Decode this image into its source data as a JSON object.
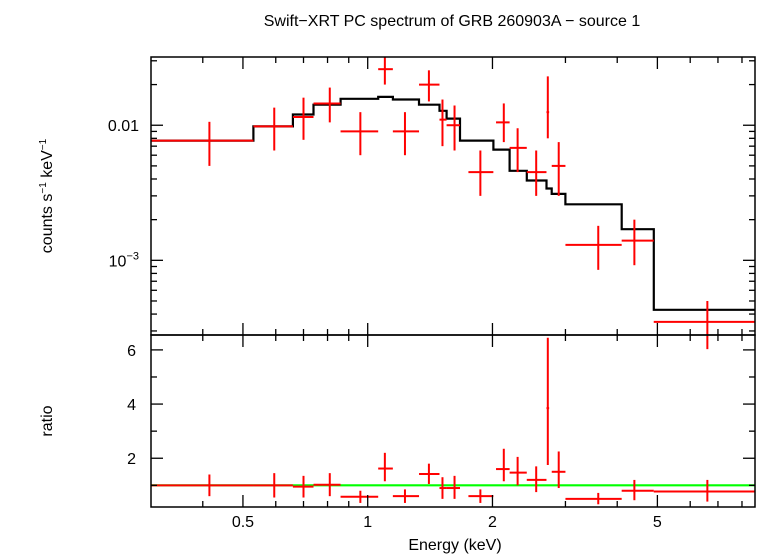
{
  "title": "Swift−XRT PC spectrum of GRB 260903A − source 1",
  "colors": {
    "data": "#ff0000",
    "model": "#000000",
    "unity": "#00ff00",
    "axes": "#000000"
  },
  "chart_data": [
    {
      "type": "scatter",
      "name_panel": "spectrum",
      "ylabel_main": "counts s",
      "ylabel_sup1": "−1",
      "ylabel_mid": " keV",
      "ylabel_sup2": "−1",
      "xscale": "log",
      "yscale": "log",
      "xlim": [
        0.3,
        8.6
      ],
      "ylim": [
        0.00028,
        0.032
      ],
      "ytick_labels": [
        {
          "value": 0.01,
          "label": "0.01",
          "sup": ""
        },
        {
          "value": 0.001,
          "label": "10",
          "sup": "−3"
        }
      ],
      "points": [
        {
          "x": 0.415,
          "xlo": 0.3,
          "xhi": 0.53,
          "y": 0.0077,
          "ylo": 0.005,
          "yhi": 0.0106
        },
        {
          "x": 0.595,
          "xlo": 0.53,
          "xhi": 0.66,
          "y": 0.0098,
          "ylo": 0.0065,
          "yhi": 0.0135
        },
        {
          "x": 0.7,
          "xlo": 0.66,
          "xhi": 0.74,
          "y": 0.0115,
          "ylo": 0.0078,
          "yhi": 0.016
        },
        {
          "x": 0.81,
          "xlo": 0.74,
          "xhi": 0.86,
          "y": 0.0145,
          "ylo": 0.0105,
          "yhi": 0.019
        },
        {
          "x": 0.96,
          "xlo": 0.86,
          "xhi": 1.06,
          "y": 0.009,
          "ylo": 0.006,
          "yhi": 0.0125
        },
        {
          "x": 1.1,
          "xlo": 1.06,
          "xhi": 1.15,
          "y": 0.026,
          "ylo": 0.02,
          "yhi": 0.032
        },
        {
          "x": 1.23,
          "xlo": 1.15,
          "xhi": 1.33,
          "y": 0.009,
          "ylo": 0.006,
          "yhi": 0.0125
        },
        {
          "x": 1.405,
          "xlo": 1.33,
          "xhi": 1.49,
          "y": 0.02,
          "ylo": 0.015,
          "yhi": 0.0255
        },
        {
          "x": 1.515,
          "xlo": 1.49,
          "xhi": 1.55,
          "y": 0.011,
          "ylo": 0.007,
          "yhi": 0.0155
        },
        {
          "x": 1.62,
          "xlo": 1.55,
          "xhi": 1.67,
          "y": 0.01,
          "ylo": 0.0065,
          "yhi": 0.014
        },
        {
          "x": 1.87,
          "xlo": 1.75,
          "xhi": 2.01,
          "y": 0.0045,
          "ylo": 0.003,
          "yhi": 0.0065
        },
        {
          "x": 2.13,
          "xlo": 2.04,
          "xhi": 2.2,
          "y": 0.0105,
          "ylo": 0.0075,
          "yhi": 0.0145
        },
        {
          "x": 2.3,
          "xlo": 2.2,
          "xhi": 2.42,
          "y": 0.0068,
          "ylo": 0.0045,
          "yhi": 0.0095
        },
        {
          "x": 2.55,
          "xlo": 2.42,
          "xhi": 2.7,
          "y": 0.0045,
          "ylo": 0.003,
          "yhi": 0.0065
        },
        {
          "x": 2.72,
          "xlo": 2.7,
          "xhi": 2.74,
          "y": 0.0125,
          "ylo": 0.008,
          "yhi": 0.023
        },
        {
          "x": 2.89,
          "xlo": 2.78,
          "xhi": 3.0,
          "y": 0.005,
          "ylo": 0.003,
          "yhi": 0.0075
        },
        {
          "x": 3.6,
          "xlo": 3.0,
          "xhi": 4.1,
          "y": 0.0013,
          "ylo": 0.00085,
          "yhi": 0.0018
        },
        {
          "x": 4.4,
          "xlo": 4.1,
          "xhi": 4.9,
          "y": 0.0014,
          "ylo": 0.00092,
          "yhi": 0.002
        },
        {
          "x": 6.6,
          "xlo": 4.9,
          "xhi": 8.6,
          "y": 0.00035,
          "ylo": 0.00022,
          "yhi": 0.0005
        }
      ],
      "model_steps": [
        {
          "xlo": 0.3,
          "xhi": 0.53,
          "y": 0.0077
        },
        {
          "xlo": 0.53,
          "xhi": 0.66,
          "y": 0.0098
        },
        {
          "xlo": 0.66,
          "xhi": 0.74,
          "y": 0.012
        },
        {
          "xlo": 0.74,
          "xhi": 0.86,
          "y": 0.0142
        },
        {
          "xlo": 0.86,
          "xhi": 1.06,
          "y": 0.0157
        },
        {
          "xlo": 1.06,
          "xhi": 1.15,
          "y": 0.0162
        },
        {
          "xlo": 1.15,
          "xhi": 1.33,
          "y": 0.0155
        },
        {
          "xlo": 1.33,
          "xhi": 1.49,
          "y": 0.0142
        },
        {
          "xlo": 1.49,
          "xhi": 1.55,
          "y": 0.0128
        },
        {
          "xlo": 1.55,
          "xhi": 1.67,
          "y": 0.0112
        },
        {
          "xlo": 1.67,
          "xhi": 2.01,
          "y": 0.0077
        },
        {
          "xlo": 2.01,
          "xhi": 2.2,
          "y": 0.0066
        },
        {
          "xlo": 2.2,
          "xhi": 2.42,
          "y": 0.0046
        },
        {
          "xlo": 2.42,
          "xhi": 2.7,
          "y": 0.0039
        },
        {
          "xlo": 2.7,
          "xhi": 2.78,
          "y": 0.0034
        },
        {
          "xlo": 2.78,
          "xhi": 3.0,
          "y": 0.0031
        },
        {
          "xlo": 3.0,
          "xhi": 4.1,
          "y": 0.0026
        },
        {
          "xlo": 4.1,
          "xhi": 4.9,
          "y": 0.0017
        },
        {
          "xlo": 4.9,
          "xhi": 8.6,
          "y": 0.00043
        }
      ]
    },
    {
      "type": "scatter",
      "name_panel": "ratio",
      "ylabel": "ratio",
      "xlabel": "Energy (keV)",
      "xscale": "log",
      "yscale": "linear",
      "xlim": [
        0.3,
        8.6
      ],
      "ylim": [
        0.2,
        6.55
      ],
      "yticks_major": [
        2,
        4,
        6
      ],
      "yticks_minor": [
        1,
        3,
        5
      ],
      "xticks_major": [
        {
          "value": 0.5,
          "label": "0.5"
        },
        {
          "value": 1,
          "label": "1"
        },
        {
          "value": 2,
          "label": "2"
        },
        {
          "value": 5,
          "label": "5"
        }
      ],
      "xticks_minor": [
        0.4,
        0.6,
        0.7,
        0.8,
        0.9,
        3,
        4,
        6,
        7,
        8
      ],
      "unity": 1.0,
      "points": [
        {
          "x": 0.415,
          "xlo": 0.3,
          "xhi": 0.53,
          "y": 1.0,
          "ylo": 0.6,
          "yhi": 1.4
        },
        {
          "x": 0.595,
          "xlo": 0.53,
          "xhi": 0.66,
          "y": 1.0,
          "ylo": 0.55,
          "yhi": 1.45
        },
        {
          "x": 0.7,
          "xlo": 0.66,
          "xhi": 0.74,
          "y": 0.95,
          "ylo": 0.55,
          "yhi": 1.35
        },
        {
          "x": 0.81,
          "xlo": 0.74,
          "xhi": 0.86,
          "y": 1.02,
          "ylo": 0.6,
          "yhi": 1.45
        },
        {
          "x": 0.96,
          "xlo": 0.86,
          "xhi": 1.06,
          "y": 0.58,
          "ylo": 0.35,
          "yhi": 0.8
        },
        {
          "x": 1.1,
          "xlo": 1.06,
          "xhi": 1.15,
          "y": 1.62,
          "ylo": 1.15,
          "yhi": 2.2
        },
        {
          "x": 1.23,
          "xlo": 1.15,
          "xhi": 1.33,
          "y": 0.6,
          "ylo": 0.35,
          "yhi": 0.85
        },
        {
          "x": 1.405,
          "xlo": 1.33,
          "xhi": 1.49,
          "y": 1.42,
          "ylo": 1.05,
          "yhi": 1.8
        },
        {
          "x": 1.515,
          "xlo": 1.49,
          "xhi": 1.55,
          "y": 0.9,
          "ylo": 0.5,
          "yhi": 1.3
        },
        {
          "x": 1.62,
          "xlo": 1.55,
          "xhi": 1.67,
          "y": 0.9,
          "ylo": 0.5,
          "yhi": 1.35
        },
        {
          "x": 1.87,
          "xlo": 1.75,
          "xhi": 2.01,
          "y": 0.6,
          "ylo": 0.35,
          "yhi": 0.85
        },
        {
          "x": 2.13,
          "xlo": 2.04,
          "xhi": 2.2,
          "y": 1.6,
          "ylo": 1.15,
          "yhi": 2.35
        },
        {
          "x": 2.3,
          "xlo": 2.2,
          "xhi": 2.42,
          "y": 1.47,
          "ylo": 1.0,
          "yhi": 2.05
        },
        {
          "x": 2.55,
          "xlo": 2.42,
          "xhi": 2.7,
          "y": 1.2,
          "ylo": 0.75,
          "yhi": 1.7
        },
        {
          "x": 2.72,
          "xlo": 2.7,
          "xhi": 2.74,
          "y": 3.85,
          "ylo": 1.75,
          "yhi": 6.45
        },
        {
          "x": 2.89,
          "xlo": 2.78,
          "xhi": 3.0,
          "y": 1.5,
          "ylo": 0.9,
          "yhi": 2.25
        },
        {
          "x": 3.6,
          "xlo": 3.0,
          "xhi": 4.1,
          "y": 0.5,
          "ylo": 0.3,
          "yhi": 0.72
        },
        {
          "x": 4.4,
          "xlo": 4.1,
          "xhi": 4.9,
          "y": 0.8,
          "ylo": 0.45,
          "yhi": 1.2
        },
        {
          "x": 6.6,
          "xlo": 4.9,
          "xhi": 8.6,
          "y": 0.77,
          "ylo": 0.4,
          "yhi": 1.2
        }
      ]
    }
  ]
}
